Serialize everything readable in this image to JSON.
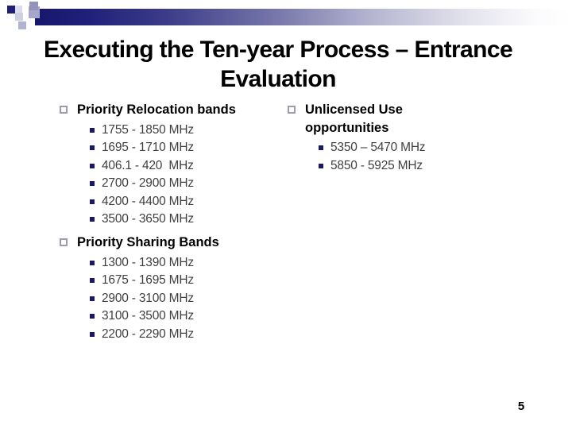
{
  "slide": {
    "title": {
      "lines": [
        "Executing the Ten-year Process – Entrance",
        "Evaluation"
      ]
    },
    "sections": [
      {
        "heading": "Priority Relocation bands",
        "items": [
          "1755 - 1850 MHz",
          "1695 - 1710 MHz",
          "406.1 - 420  MHz",
          "2700 - 2900 MHz",
          "4200 - 4400 MHz",
          "3500 - 3650 MHz"
        ]
      },
      {
        "heading": "Priority Sharing Bands",
        "items": [
          "1300 - 1390 MHz",
          "1675 - 1695 MHz",
          "2900 - 3100 MHz",
          "3100 - 3500 MHz",
          "2200 - 2290 MHz"
        ]
      },
      {
        "heading": "Unlicensed Use opportunities",
        "items": [
          "5350 – 5470 MHz",
          "5850 - 5925 MHz"
        ]
      }
    ],
    "page_number": "5",
    "colors": {
      "bar_navy": "#17176d",
      "item_bullet_navy": "#181873",
      "heading_bullet_gray": "#9b9bab",
      "item_text_gray": "#3f3f3f"
    }
  }
}
